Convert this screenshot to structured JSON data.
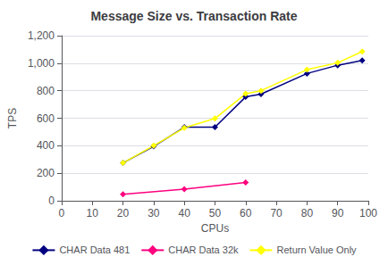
{
  "chart_data": {
    "type": "line",
    "title": "Message Size vs. Transaction Rate",
    "xlabel": "CPUs",
    "ylabel": "TPS",
    "xlim": [
      0,
      100
    ],
    "xticks": [
      0,
      10,
      20,
      30,
      40,
      50,
      60,
      70,
      80,
      90,
      100
    ],
    "ylim": [
      0,
      1200
    ],
    "yticks": [
      0,
      200,
      400,
      600,
      800,
      1000,
      1200
    ],
    "grid": true,
    "legend": "bottom",
    "marker": "diamond",
    "series": [
      {
        "name": "CHAR Data 481",
        "color": "#000080",
        "x": [
          20,
          30,
          40,
          50,
          60,
          65,
          80,
          90,
          98
        ],
        "values": [
          275,
          395,
          535,
          535,
          755,
          775,
          925,
          985,
          1020
        ]
      },
      {
        "name": "CHAR Data 32k",
        "color": "#ff007f",
        "x": [
          20,
          40,
          60
        ],
        "values": [
          47,
          85,
          133
        ]
      },
      {
        "name": "Return Value Only",
        "color": "#ffff00",
        "x": [
          20,
          30,
          40,
          50,
          60,
          65,
          80,
          90,
          98
        ],
        "values": [
          275,
          400,
          530,
          598,
          778,
          800,
          953,
          1003,
          1085
        ]
      }
    ]
  }
}
